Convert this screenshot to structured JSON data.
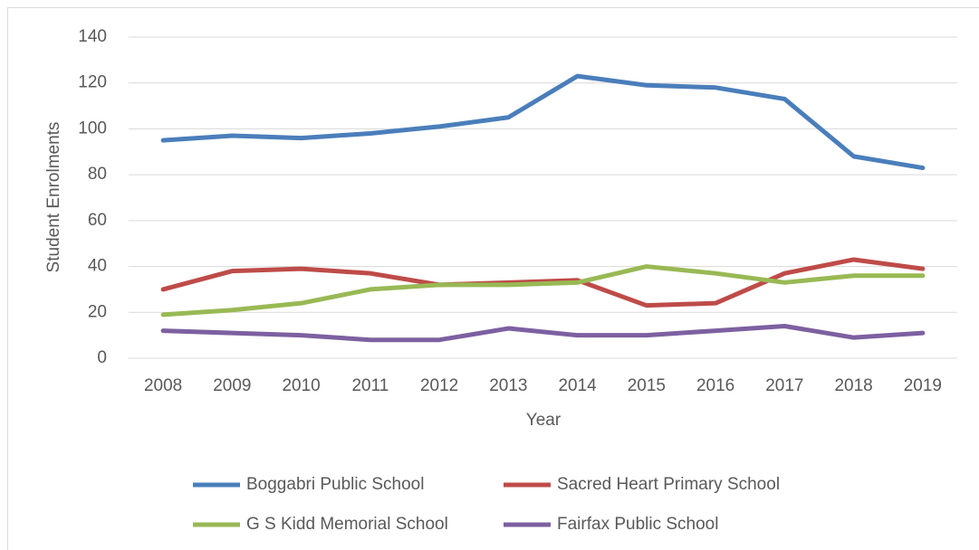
{
  "chart_data": {
    "type": "line",
    "xlabel": "Year",
    "ylabel": "Student Enrolments",
    "categories": [
      "2008",
      "2009",
      "2010",
      "2011",
      "2012",
      "2013",
      "2014",
      "2015",
      "2016",
      "2017",
      "2018",
      "2019"
    ],
    "series": [
      {
        "name": "Boggabri Public School",
        "color": "#4a7ebb",
        "values": [
          95,
          97,
          96,
          98,
          101,
          105,
          123,
          119,
          118,
          113,
          88,
          83
        ]
      },
      {
        "name": "Sacred Heart Primary School",
        "color": "#be4b48",
        "values": [
          30,
          38,
          39,
          37,
          32,
          33,
          34,
          23,
          24,
          37,
          43,
          39
        ]
      },
      {
        "name": "G S Kidd Memorial School",
        "color": "#98b954",
        "values": [
          19,
          21,
          24,
          30,
          32,
          32,
          33,
          40,
          37,
          33,
          36,
          36
        ]
      },
      {
        "name": "Fairfax Public School",
        "color": "#7d60a0",
        "values": [
          12,
          11,
          10,
          8,
          8,
          13,
          10,
          10,
          12,
          14,
          9,
          11
        ]
      }
    ],
    "ylim": [
      0,
      140
    ],
    "yticks": [
      0,
      20,
      40,
      60,
      80,
      100,
      120,
      140
    ],
    "grid": true
  }
}
